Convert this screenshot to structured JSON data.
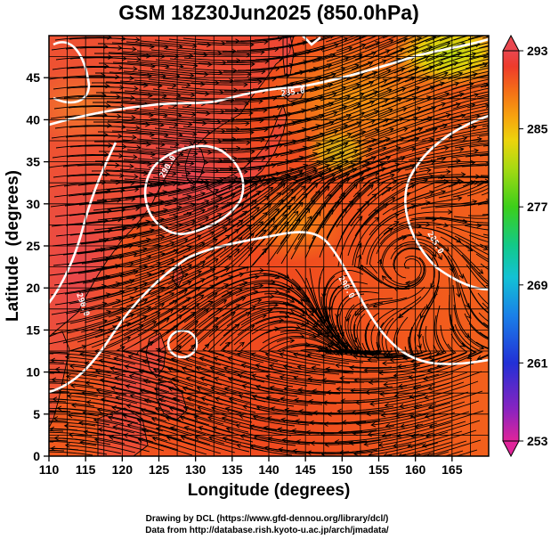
{
  "title": "GSM 18Z30Jun2025 (850.0hPa)",
  "chart_data": {
    "type": "heatmap",
    "title": "GSM 18Z30Jun2025 (850.0hPa)",
    "xlabel": "Longitude (degrees)",
    "ylabel": "Latitude  (degrees)",
    "xlim": [
      110,
      170
    ],
    "ylim": [
      0,
      50
    ],
    "x_ticks": [
      110,
      115,
      120,
      125,
      130,
      135,
      140,
      145,
      150,
      155,
      160,
      165
    ],
    "y_ticks": [
      0,
      5,
      10,
      15,
      20,
      25,
      30,
      35,
      40,
      45
    ],
    "grid": true,
    "overlays": [
      "streamlines",
      "contours (white)",
      "coastlines"
    ],
    "contour_labels": [
      "285.0",
      "290.0",
      "290.0",
      "290.0",
      "285.0",
      "290.0"
    ],
    "colorbar": {
      "position": "right",
      "min": 253,
      "max": 293,
      "ticks": [
        293,
        285,
        277,
        269,
        261,
        253
      ],
      "colors": [
        "#e0249a",
        "#6a1fb8",
        "#1f2bd4",
        "#1a8ee8",
        "#12c9d0",
        "#13c97a",
        "#3fcf1a",
        "#a4d913",
        "#e8d80c",
        "#f7a10d",
        "#f46a18",
        "#ef3a2c",
        "#e9474f"
      ]
    }
  },
  "credits": {
    "line1": "Drawing by DCL (https://www.gfd-dennou.org/library/dcl/)",
    "line2": "Data from http://database.rish.kyoto-u.ac.jp/arch/jmadata/"
  }
}
